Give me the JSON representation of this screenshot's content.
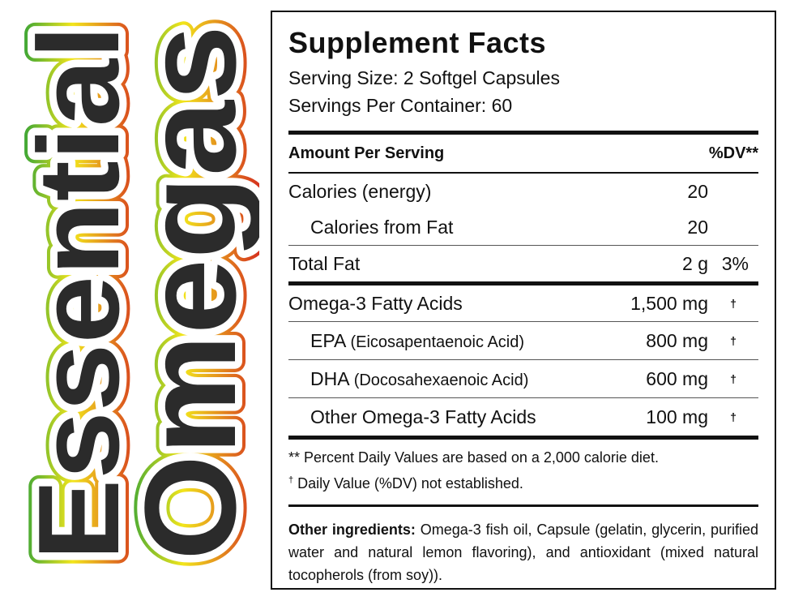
{
  "brand": {
    "word1": "Essential",
    "word2": "Omegas",
    "colors": {
      "top": "#1a9a3a",
      "middle": "#f2e51c",
      "bottom": "#d42a1f",
      "text": "#2b2b2b"
    }
  },
  "facts": {
    "title": "Supplement Facts",
    "serving_size": "Serving Size: 2 Softgel Capsules",
    "servings_per_container": "Servings Per Container: 60",
    "header": {
      "amount": "Amount Per Serving",
      "dv": "%DV**"
    },
    "rows": [
      {
        "name": "Calories (energy)",
        "amount": "20",
        "dv": ""
      },
      {
        "name": "Calories from Fat",
        "amount": "20",
        "dv": ""
      },
      {
        "name": "Total Fat",
        "amount": "2 g",
        "dv": "3%"
      },
      {
        "name": "Omega-3 Fatty Acids",
        "amount": "1,500 mg",
        "dv": "†"
      },
      {
        "name": "EPA",
        "detail": "(Eicosapentaenoic Acid)",
        "amount": "800 mg",
        "dv": "†"
      },
      {
        "name": "DHA",
        "detail": "(Docosahexaenoic Acid)",
        "amount": "600 mg",
        "dv": "†"
      },
      {
        "name": "Other Omega-3 Fatty Acids",
        "amount": "100 mg",
        "dv": "†"
      }
    ],
    "footnote1": "** Percent Daily Values are based on a 2,000 calorie diet.",
    "footnote2_mark": "†",
    "footnote2": " Daily Value (%DV) not established.",
    "ingredients_label": "Other ingredients:",
    "ingredients_text": " Omega-3 fish oil, Capsule (gelatin, glycerin, purified water and natural lemon flavoring), and antioxidant (mixed natural tocopherols (from soy))."
  }
}
